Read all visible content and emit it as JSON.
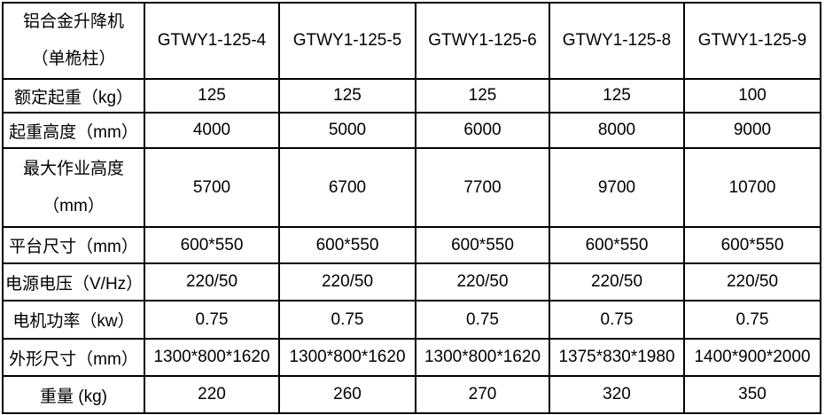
{
  "page": {
    "background": "#ffffff",
    "border_color": "#000000",
    "text_color": "#000000"
  },
  "table": {
    "header": {
      "product_line1": "铝合金升降机",
      "product_line2": "（单桅柱）",
      "models": [
        "GTWY1-125-4",
        "GTWY1-125-5",
        "GTWY1-125-6",
        "GTWY1-125-8",
        "GTWY1-125-9"
      ]
    },
    "rows": [
      {
        "label": "额定起重（kg）",
        "values": [
          "125",
          "125",
          "125",
          "125",
          "100"
        ]
      },
      {
        "label": "起重高度（mm）",
        "values": [
          "4000",
          "5000",
          "6000",
          "8000",
          "9000"
        ]
      },
      {
        "label": "最大作业高度",
        "label2": "（mm）",
        "values": [
          "5700",
          "6700",
          "7700",
          "9700",
          "10700"
        ]
      },
      {
        "label": "平台尺寸（mm）",
        "values": [
          "600*550",
          "600*550",
          "600*550",
          "600*550",
          "600*550"
        ]
      },
      {
        "label": "电源电压（V/Hz）",
        "values": [
          "220/50",
          "220/50",
          "220/50",
          "220/50",
          "220/50"
        ]
      },
      {
        "label": "电机功率（kw）",
        "values": [
          "0.75",
          "0.75",
          "0.75",
          "0.75",
          "0.75"
        ]
      },
      {
        "label": "外形尺寸（mm）",
        "values": [
          "1300*800*1620",
          "1300*800*1620",
          "1300*800*1620",
          "1375*830*1980",
          "1400*900*2000"
        ]
      },
      {
        "label": "重量 (kg)",
        "values": [
          "220",
          "260",
          "270",
          "320",
          "350"
        ]
      }
    ]
  }
}
